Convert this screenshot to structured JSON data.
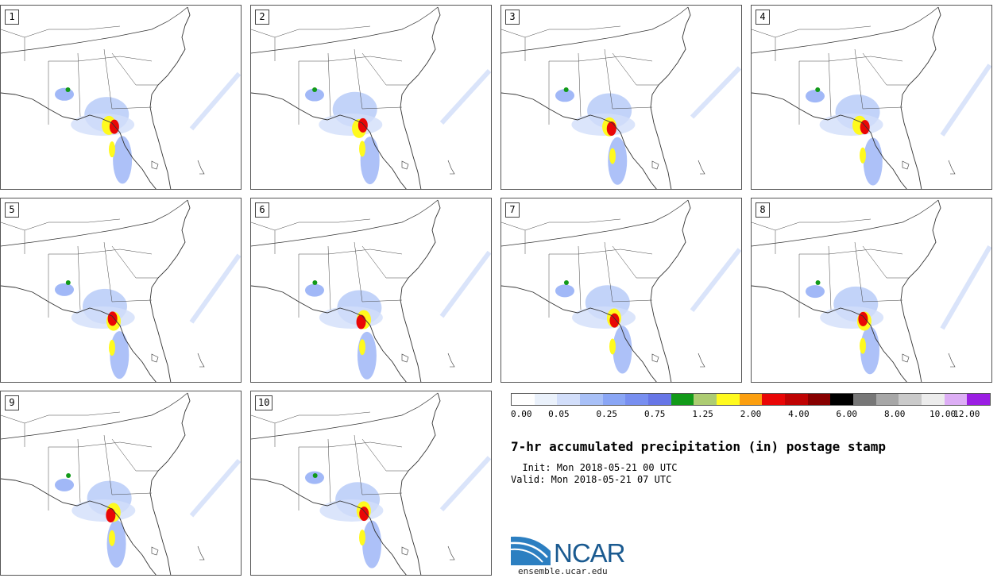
{
  "members": [
    {
      "label": "1"
    },
    {
      "label": "2"
    },
    {
      "label": "3"
    },
    {
      "label": "4"
    },
    {
      "label": "5"
    },
    {
      "label": "6"
    },
    {
      "label": "7"
    },
    {
      "label": "8"
    },
    {
      "label": "9"
    },
    {
      "label": "10"
    }
  ],
  "colorbar": {
    "colors": [
      "#ffffff",
      "#eaf1fb",
      "#d2defa",
      "#a8c0f7",
      "#8aa6f5",
      "#788ff0",
      "#6776e6",
      "#129a19",
      "#adcc72",
      "#fffa1e",
      "#fc9f0f",
      "#e90606",
      "#bf0303",
      "#870000",
      "#000000",
      "#777777",
      "#a7a7a7",
      "#cacaca",
      "#ececec",
      "#ddaef5",
      "#9b1ee3"
    ],
    "tick_labels": [
      "0.00",
      "0.05",
      "0.25",
      "0.75",
      "1.25",
      "2.00",
      "4.00",
      "6.00",
      "8.00",
      "10.00",
      "12.00"
    ]
  },
  "title": "7-hr accumulated precipitation (in) postage stamp",
  "init_line": "  Init: Mon 2018-05-21 00 UTC",
  "valid_line": "Valid: Mon 2018-05-21 07 UTC",
  "logo_text": "NCAR",
  "site": "ensemble.ucar.edu"
}
